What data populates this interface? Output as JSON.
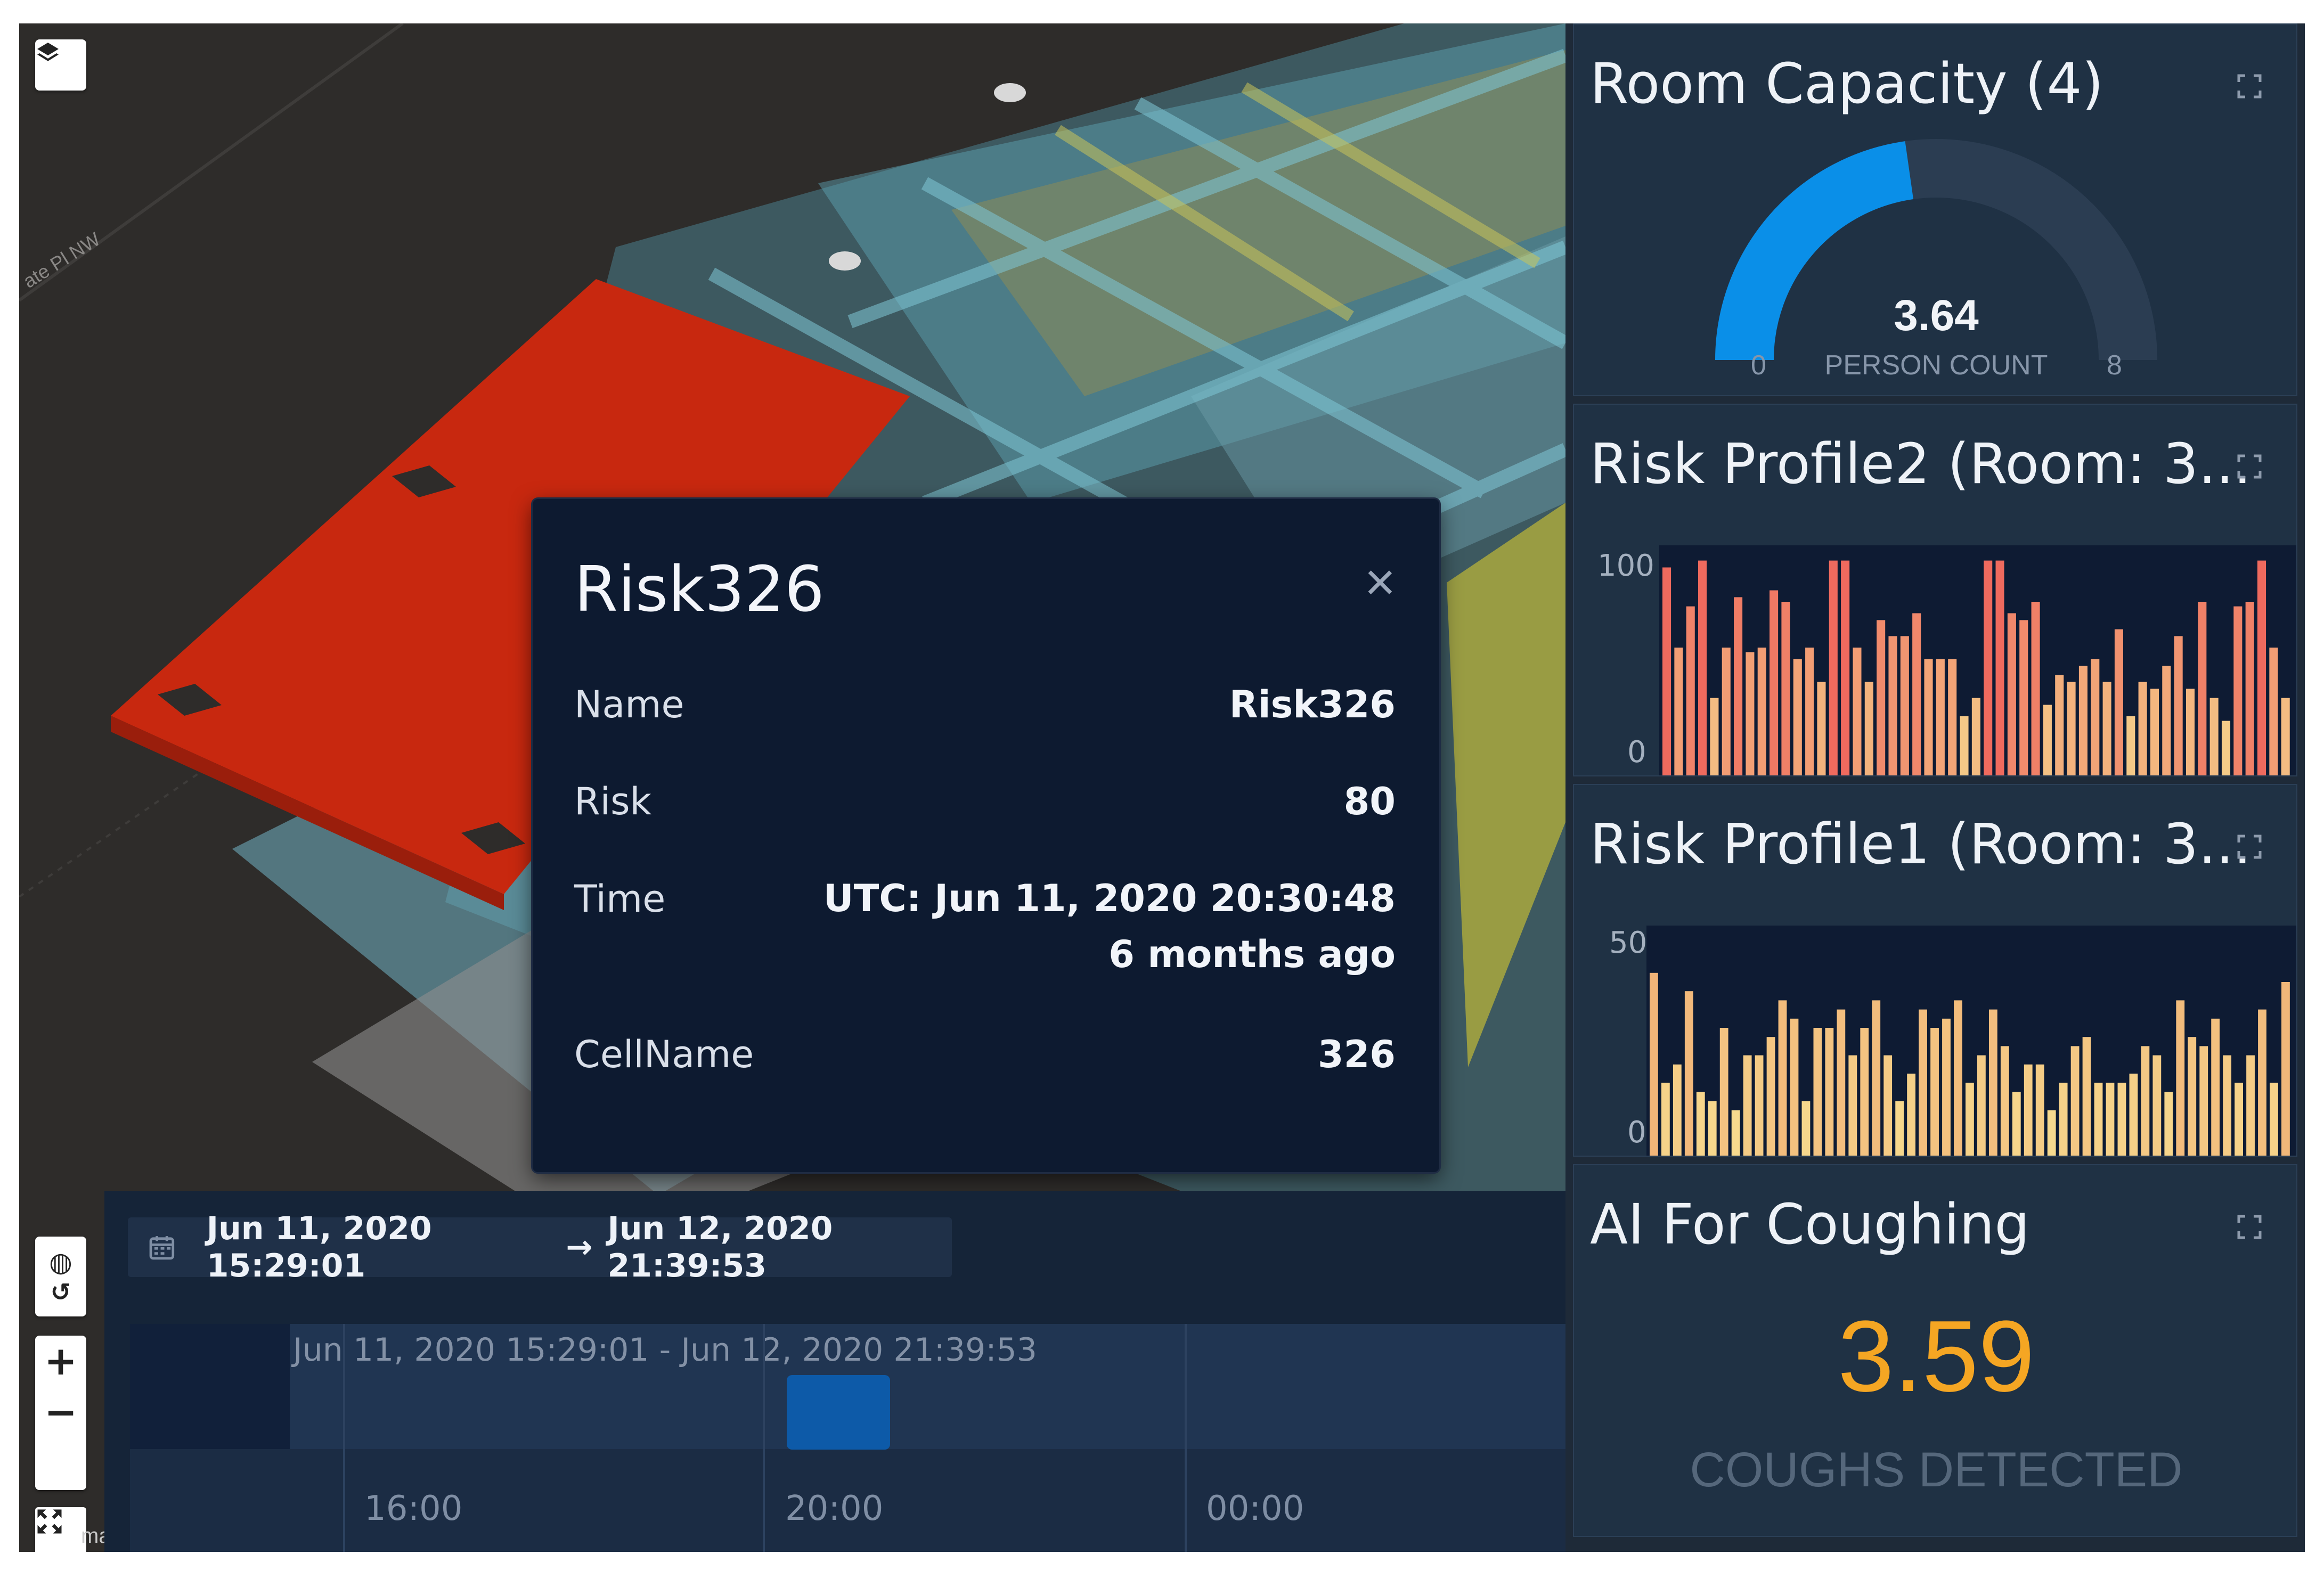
{
  "map": {
    "street_label": "ate Pl NW",
    "attribution": "ma",
    "controls": {
      "layers": "layers-icon",
      "globe": "globe-icon",
      "history": "history-icon",
      "zoom_in": "+",
      "zoom_out": "−",
      "fullscreen": "fullscreen-icon"
    }
  },
  "popup": {
    "title": "Risk326",
    "close": "×",
    "rows": [
      {
        "key": "Name",
        "value": "Risk326"
      },
      {
        "key": "Risk",
        "value": "80"
      },
      {
        "key": "Time",
        "value": "UTC: Jun 11, 2020 20:30:48",
        "value2": "6 months ago"
      },
      {
        "key": "CellName",
        "value": "326"
      }
    ]
  },
  "timeline": {
    "start": "Jun 11, 2020 15:29:01",
    "arrow": "→",
    "end": "Jun 12, 2020 21:39:53",
    "range_label": "Jun 11, 2020 15:29:01 - Jun 12, 2020 21:39:53",
    "ticks": [
      "16:00",
      "20:00",
      "00:00"
    ]
  },
  "panel": {
    "room_capacity": {
      "title": "Room Capacity (4)",
      "value": "3.64",
      "unit": "PERSON COUNT",
      "min": "0",
      "max": "8",
      "fraction": 0.455,
      "color": "#0a8fe8"
    },
    "risk_profile2": {
      "title": "Risk Profile2 (Room: 3...",
      "ymax": "100",
      "ymin": "0"
    },
    "risk_profile1": {
      "title": "Risk Profile1 (Room: 3...",
      "ymax": "50",
      "ymin": "0"
    },
    "coughing": {
      "title": "AI For Coughing",
      "value": "3.59",
      "label": "COUGHS DETECTED",
      "color": "#f5a623"
    }
  },
  "chart_data": [
    {
      "type": "bar",
      "title": "Risk Profile2 (Room: 3...",
      "ylim": [
        0,
        100
      ],
      "values": [
        95,
        60,
        78,
        98,
        38,
        60,
        82,
        58,
        60,
        85,
        80,
        55,
        60,
        45,
        98,
        98,
        60,
        45,
        72,
        65,
        65,
        75,
        55,
        55,
        55,
        30,
        38,
        98,
        98,
        75,
        72,
        80,
        35,
        48,
        45,
        52,
        55,
        45,
        68,
        30,
        45,
        42,
        52,
        65,
        42,
        80,
        38,
        28,
        78,
        80,
        98,
        60,
        38
      ]
    },
    {
      "type": "bar",
      "title": "Risk Profile1 (Room: 3...",
      "ylim": [
        0,
        50
      ],
      "values": [
        42,
        18,
        22,
        38,
        16,
        14,
        30,
        12,
        24,
        24,
        28,
        36,
        32,
        14,
        30,
        30,
        34,
        24,
        30,
        36,
        24,
        14,
        20,
        34,
        30,
        32,
        36,
        18,
        24,
        34,
        26,
        16,
        22,
        22,
        12,
        18,
        26,
        28,
        18,
        18,
        18,
        20,
        26,
        24,
        16,
        36,
        28,
        26,
        32,
        24,
        18,
        24,
        34,
        18,
        40
      ]
    }
  ]
}
